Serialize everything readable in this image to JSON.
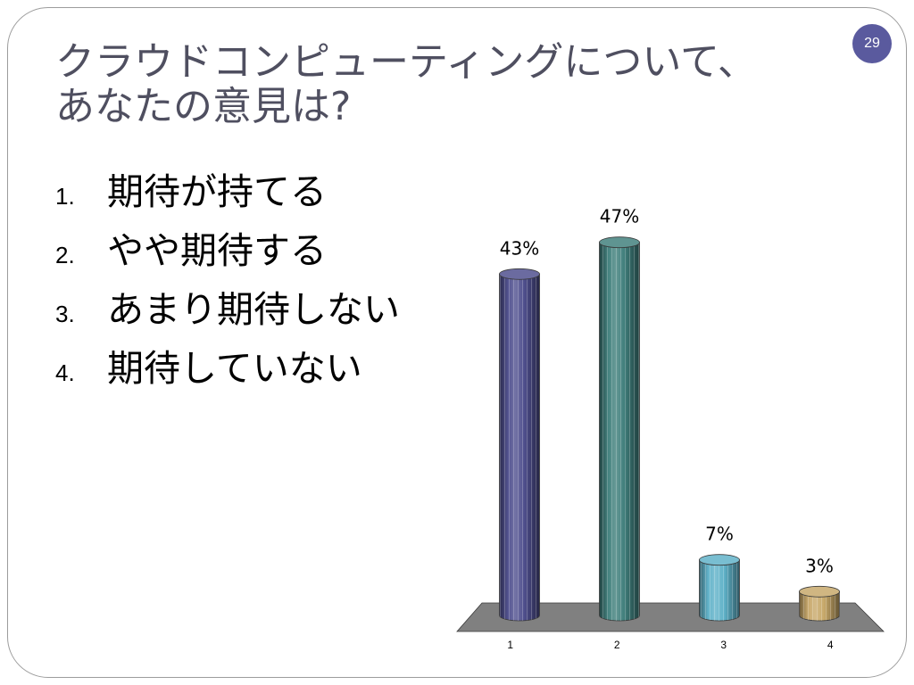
{
  "slide": {
    "number": "29",
    "title_lines": [
      "クラウドコンピューティングについて、",
      "あなたの意見は?"
    ]
  },
  "options": [
    {
      "number": "1.",
      "label": "期待が持てる"
    },
    {
      "number": "2.",
      "label": "やや期待する"
    },
    {
      "number": "3.",
      "label": "あまり期待しない"
    },
    {
      "number": "4.",
      "label": "期待していない"
    }
  ],
  "colors": {
    "background": "#ffffff",
    "slide_border": "#9c9c9c",
    "title_text": "#4f4f60",
    "body_text": "#000000",
    "slide_number_badge": "#5a5a9e",
    "slide_number_text": "#ffffff",
    "chart_floor": "#808080",
    "chart_outline": "#3a3a3a"
  },
  "chart_data": {
    "type": "bar",
    "bar_shape": "3d-cylinder",
    "categories": [
      "1",
      "2",
      "3",
      "4"
    ],
    "values": [
      43,
      47,
      7,
      3
    ],
    "data_labels": [
      "43%",
      "47%",
      "7%",
      "3%"
    ],
    "bar_colors": [
      "#4b4b8b",
      "#3c7c79",
      "#5cb0c7",
      "#c6a666"
    ],
    "y_axis_shown": false,
    "grid": false,
    "legend": "none"
  }
}
